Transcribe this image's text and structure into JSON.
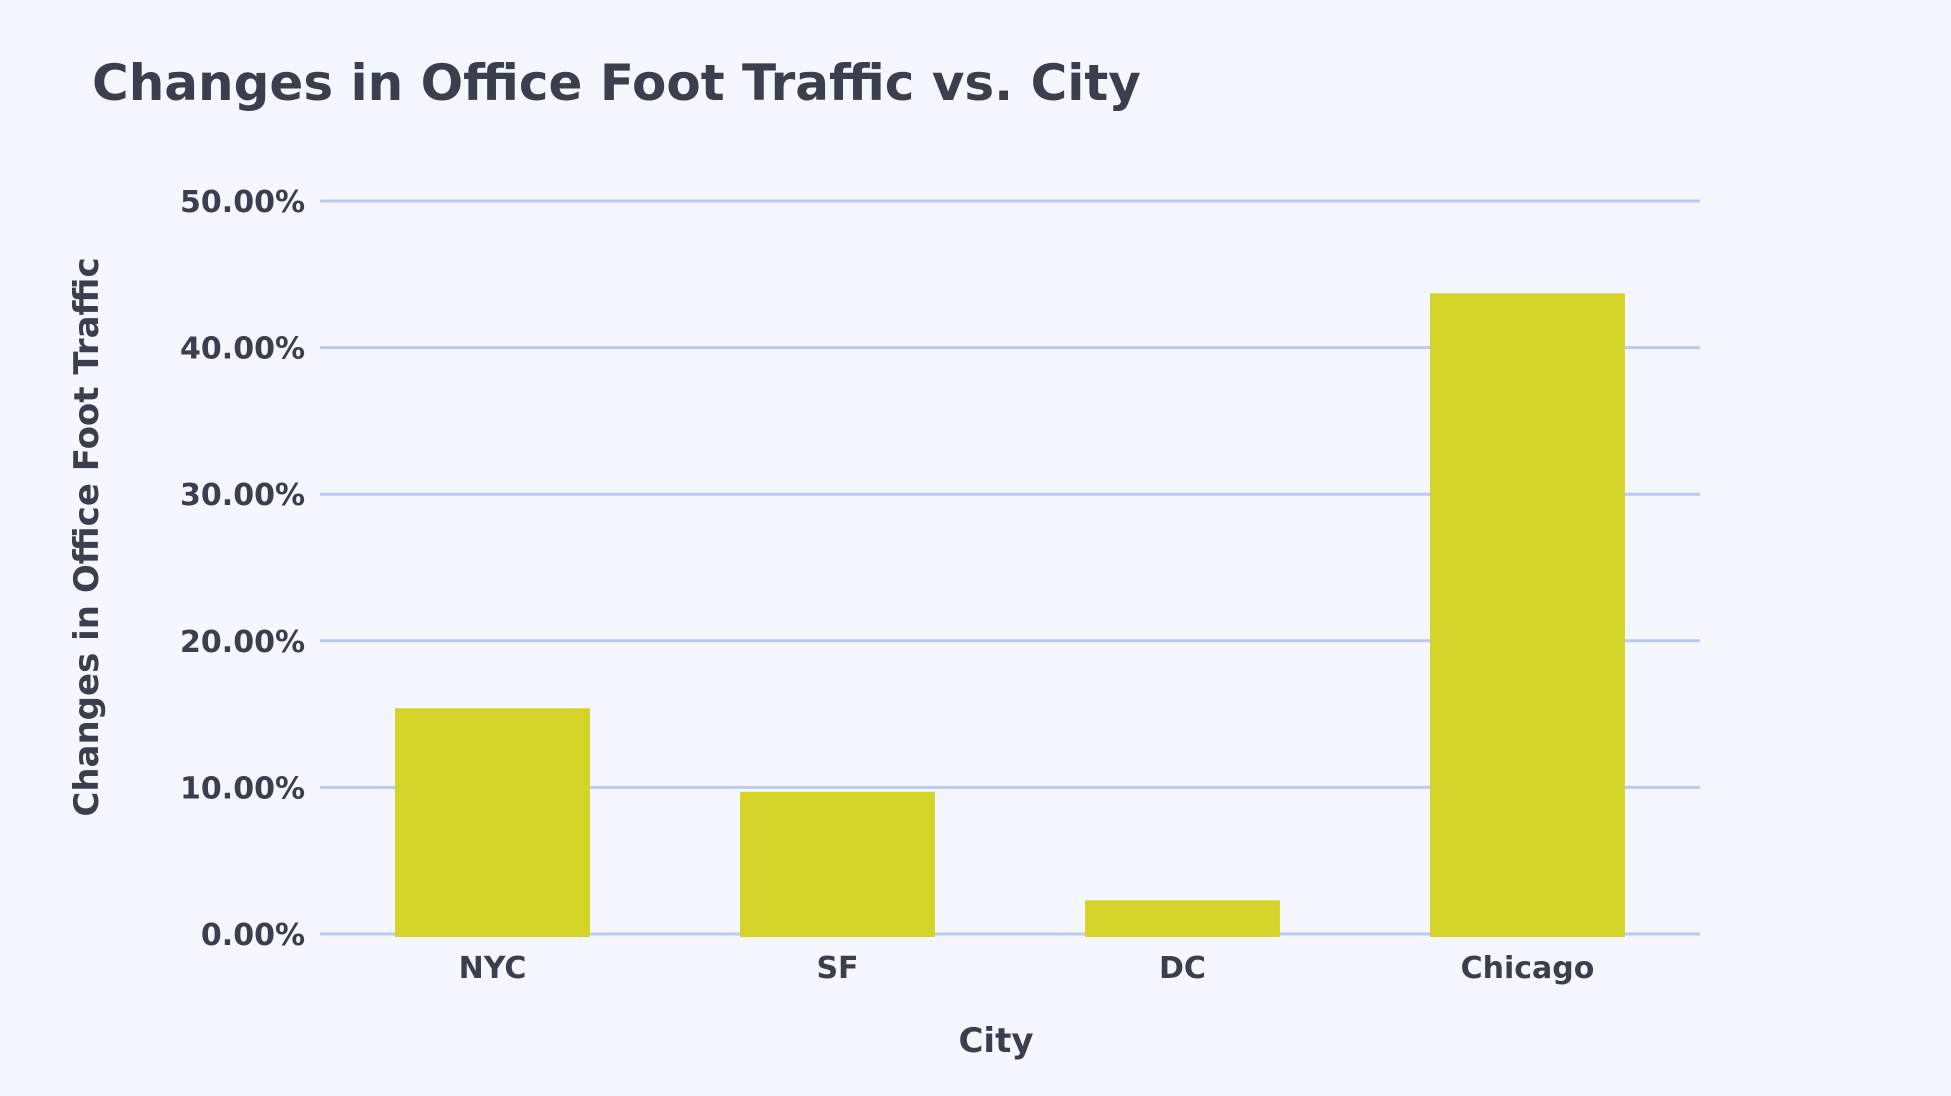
{
  "chart_data": {
    "type": "bar",
    "title": "Changes in Office Foot Traffic vs. City",
    "xlabel": "City",
    "ylabel": "Changes in Office Foot Traffic",
    "categories": [
      "NYC",
      "SF",
      "DC",
      "Chicago"
    ],
    "values": [
      15.4,
      9.7,
      2.3,
      43.7
    ],
    "ylim": [
      0,
      50
    ],
    "yticks": [
      0,
      10,
      20,
      30,
      40,
      50
    ],
    "ytick_labels": [
      "0.00%",
      "10.00%",
      "20.00%",
      "30.00%",
      "40.00%",
      "50.00%"
    ],
    "grid": true,
    "legend": "none",
    "colors": {
      "bar": "#d4d428",
      "grid": "#bccaf3",
      "background": "#f4f7fd",
      "text": "#3b3f4d"
    }
  }
}
